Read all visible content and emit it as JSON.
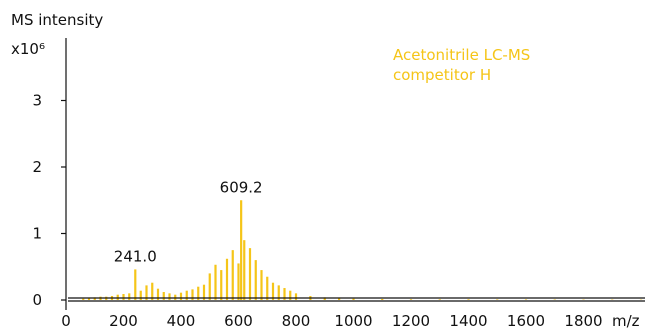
{
  "chart_data": {
    "type": "bar",
    "title": "",
    "ylabel": "MS intensity",
    "y_multiplier": "x10⁶",
    "xlabel": "m/z",
    "xlim": [
      0,
      2100
    ],
    "ylim": [
      0,
      3.6
    ],
    "x_ticks": [
      "0",
      "200",
      "400",
      "600",
      "800",
      "1000",
      "1200",
      "1400",
      "1600",
      "1800"
    ],
    "x_tick_values": [
      0,
      200,
      400,
      600,
      800,
      1000,
      1200,
      1400,
      1600,
      1800
    ],
    "y_ticks": [
      "0",
      "1",
      "2",
      "3"
    ],
    "y_tick_values": [
      0,
      1,
      2,
      3
    ],
    "legend": {
      "line1": "Acetonitrile LC-MS",
      "line2": "competitor H",
      "position": "top-right"
    },
    "series_color": "#F5C518",
    "annotations": [
      {
        "text": "241.0",
        "x": 241.0,
        "y": 0.46
      },
      {
        "text": "609.2",
        "x": 609.2,
        "y": 1.5
      }
    ],
    "series": [
      {
        "name": "Acetonitrile LC-MS competitor H",
        "x": [
          60,
          80,
          100,
          120,
          140,
          160,
          180,
          200,
          220,
          241.0,
          260,
          280,
          300,
          320,
          340,
          360,
          380,
          400,
          420,
          440,
          460,
          480,
          500,
          520,
          540,
          560,
          580,
          600,
          609.2,
          620,
          640,
          660,
          680,
          700,
          720,
          740,
          760,
          780,
          800,
          850,
          900,
          950,
          1000,
          1100,
          1200,
          1300,
          1400,
          1500,
          1600,
          1700,
          1800,
          1900,
          2000
        ],
        "values": [
          0.02,
          0.03,
          0.04,
          0.05,
          0.05,
          0.06,
          0.08,
          0.09,
          0.1,
          0.46,
          0.14,
          0.22,
          0.26,
          0.17,
          0.12,
          0.1,
          0.08,
          0.11,
          0.14,
          0.16,
          0.2,
          0.23,
          0.4,
          0.53,
          0.45,
          0.62,
          0.75,
          0.55,
          1.5,
          0.9,
          0.78,
          0.6,
          0.45,
          0.35,
          0.26,
          0.22,
          0.18,
          0.14,
          0.1,
          0.06,
          0.04,
          0.03,
          0.02,
          0.015,
          0.01,
          0.01,
          0.01,
          0.008,
          0.008,
          0.007,
          0.006,
          0.006,
          0.005
        ]
      }
    ]
  }
}
